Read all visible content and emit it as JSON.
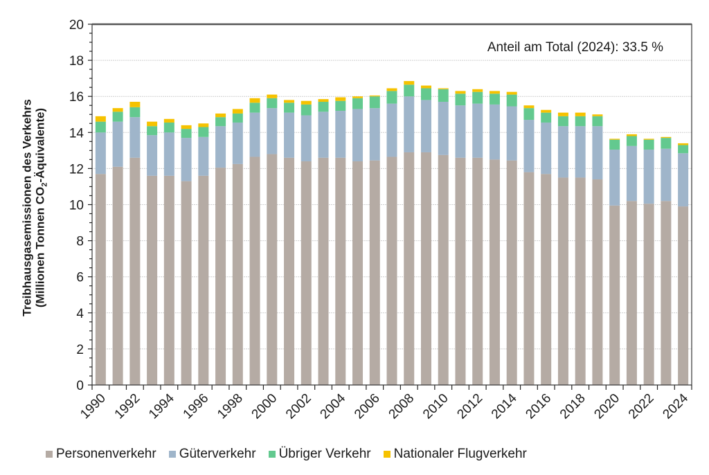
{
  "chart_data": {
    "type": "bar",
    "stacked": true,
    "title": "",
    "ylabel_line1": "Treibhausgasemissionen des Verkehrs",
    "ylabel_line2_prefix": "(Millionen Tonnen CO",
    "ylabel_line2_sub": "2",
    "ylabel_line2_suffix": "-Äquivalente)",
    "xlabel": "",
    "ylim": [
      0,
      20
    ],
    "yticks": [
      0,
      2,
      4,
      6,
      8,
      10,
      12,
      14,
      16,
      18,
      20
    ],
    "ytick_labels": [
      "0",
      "2",
      "4",
      "6",
      "8",
      "10",
      "12",
      "14",
      "16",
      "18",
      "20"
    ],
    "grid": true,
    "legend_position": "bottom",
    "annotation": "Anteil am Total  (2024):  33.5 %",
    "categories": [
      "1990",
      "1991",
      "1992",
      "1993",
      "1994",
      "1995",
      "1996",
      "1997",
      "1998",
      "1999",
      "2000",
      "2001",
      "2002",
      "2003",
      "2004",
      "2005",
      "2006",
      "2007",
      "2008",
      "2009",
      "2010",
      "2011",
      "2012",
      "2013",
      "2014",
      "2015",
      "2016",
      "2017",
      "2018",
      "2019",
      "2020",
      "2021",
      "2022",
      "2023",
      "2024"
    ],
    "xtick_labels": [
      "1990",
      "1992",
      "1994",
      "1996",
      "1998",
      "2000",
      "2002",
      "2004",
      "2006",
      "2008",
      "2010",
      "2012",
      "2014",
      "2016",
      "2018",
      "2020",
      "2022",
      "2024"
    ],
    "series": [
      {
        "name": "Personenverkehr",
        "color": "#b5aba4",
        "values": [
          11.7,
          12.1,
          12.6,
          11.6,
          11.6,
          11.3,
          11.6,
          12.05,
          12.25,
          12.65,
          12.8,
          12.6,
          12.4,
          12.6,
          12.6,
          12.4,
          12.45,
          12.65,
          12.9,
          12.9,
          12.75,
          12.6,
          12.6,
          12.5,
          12.45,
          11.8,
          11.7,
          11.5,
          11.5,
          11.4,
          9.95,
          10.2,
          10.05,
          10.2,
          9.9
        ]
      },
      {
        "name": "Güterverkehr",
        "color": "#9fb5ca",
        "values": [
          2.3,
          2.5,
          2.25,
          2.25,
          2.4,
          2.4,
          2.15,
          2.3,
          2.3,
          2.45,
          2.55,
          2.5,
          2.55,
          2.55,
          2.6,
          2.9,
          2.9,
          2.95,
          3.1,
          2.9,
          2.95,
          2.9,
          3.0,
          3.05,
          3.0,
          2.9,
          2.85,
          2.85,
          2.85,
          2.95,
          3.1,
          3.05,
          3.0,
          2.9,
          2.95
        ]
      },
      {
        "name": "Übriger Verkehr",
        "color": "#63c98f",
        "values": [
          0.6,
          0.55,
          0.55,
          0.5,
          0.55,
          0.5,
          0.55,
          0.5,
          0.5,
          0.55,
          0.55,
          0.55,
          0.6,
          0.55,
          0.55,
          0.6,
          0.65,
          0.7,
          0.65,
          0.65,
          0.7,
          0.65,
          0.65,
          0.6,
          0.65,
          0.65,
          0.55,
          0.55,
          0.55,
          0.55,
          0.55,
          0.55,
          0.55,
          0.6,
          0.45
        ]
      },
      {
        "name": "Nationaler Flugverkehr",
        "color": "#f6c200",
        "values": [
          0.3,
          0.2,
          0.3,
          0.25,
          0.2,
          0.2,
          0.2,
          0.2,
          0.25,
          0.25,
          0.2,
          0.15,
          0.2,
          0.15,
          0.2,
          0.1,
          0.05,
          0.15,
          0.2,
          0.15,
          0.05,
          0.15,
          0.15,
          0.15,
          0.15,
          0.15,
          0.15,
          0.2,
          0.2,
          0.1,
          0.05,
          0.1,
          0.05,
          0.05,
          0.1
        ]
      }
    ]
  }
}
